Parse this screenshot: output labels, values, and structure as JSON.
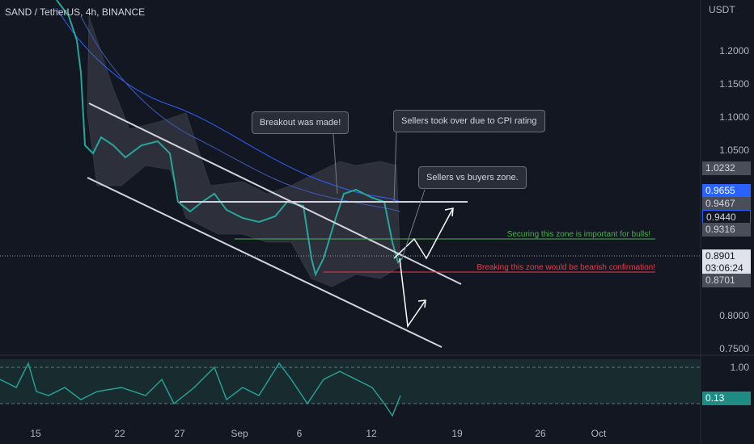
{
  "header": {
    "symbol": "SAND / TetherUS, 4h, BINANCE"
  },
  "price_axis": {
    "currency": "USDT",
    "ticks": [
      "1.2000",
      "1.1500",
      "1.1000",
      "1.0500",
      "0.8000",
      "0.7500"
    ]
  },
  "price_badges": [
    "1.0232",
    "0.9655",
    "0.9467",
    "0.9440",
    "0.9316",
    "0.8901",
    "0.8701"
  ],
  "countdown": "03:06:24",
  "time_axis": [
    "15",
    "22",
    "27",
    "Sep",
    "6",
    "12",
    "19",
    "26",
    "Oct"
  ],
  "annotations": {
    "breakout": "Breakout was made!",
    "sellers_cpi": "Sellers took over due to CPI rating",
    "zone": "Sellers vs buyers zone.",
    "bulls": "Securing this zone is important for bulls!",
    "bears": "Breaking this zone would be bearish confirmation!"
  },
  "oscillator": {
    "ticks": [
      "1.00"
    ],
    "badge": "0.13"
  }
}
